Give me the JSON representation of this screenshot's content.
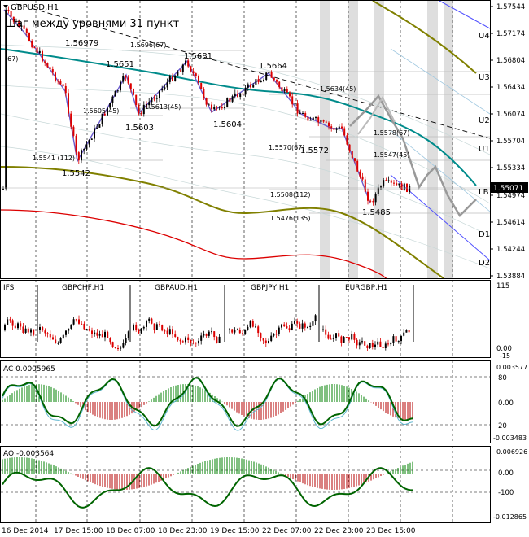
{
  "main": {
    "symbol_label": "GBPUSD,H1",
    "note": "Шаг между уровнями 31 пункт",
    "current_price": "1.55071",
    "price_axis": [
      "1.57544",
      "1.57174",
      "1.56804",
      "1.56434",
      "1.56074",
      "1.55704",
      "1.55334",
      "1.54974",
      "1.54614",
      "1.54244",
      "1.53884"
    ],
    "level_labels": [
      "U4",
      "U3",
      "U2",
      "U1",
      "LB",
      "D1",
      "D2"
    ],
    "annotations": [
      "1.56979",
      "1.5651",
      "1.5681",
      "1.5664",
      "1.5603",
      "1.5604",
      "1.5572",
      "1.5542",
      "1.5485",
      "1.5696(67)",
      "1.5605(45)",
      "1.5613(45)",
      "1.5634(45)",
      "1.5578(67)",
      "1.5547(45)",
      "1.5570(67)",
      "1.5541 (112)",
      "1.5508(112)",
      "1.5476(135)",
      "(67)"
    ]
  },
  "panel2": {
    "label": "IFS",
    "sub_labels": [
      "GBPCHF,H1",
      "GBPAUD,H1",
      "GBPJPY,H1",
      "EURGBP,H1"
    ],
    "axis": [
      "115",
      "0.00",
      "-15"
    ]
  },
  "panel3": {
    "label": "AC 0.0005965",
    "axis": [
      "0.003577",
      "80",
      "0.00",
      "20",
      "-0.003483"
    ]
  },
  "panel4": {
    "label": "AO -0.003564",
    "axis": [
      "0.006926",
      "0.00",
      "-100",
      "-0.012865"
    ]
  },
  "time_axis": [
    "16 Dec 2014",
    "17 Dec 15:00",
    "18 Dec 07:00",
    "18 Dec 23:00",
    "19 Dec 15:00",
    "22 Dec 07:00",
    "22 Dec 23:00",
    "23 Dec 15:00"
  ],
  "colors": {
    "price_bull": "#000000",
    "price_bear": "#dc0000",
    "ma_teal": "#008b8b",
    "ma_olive": "#808000",
    "ma_red": "#dc0000",
    "channel_blue": "#6464ff",
    "indicator_green": "#006400",
    "hist_red": "#b40000",
    "hist_green": "#008000"
  }
}
